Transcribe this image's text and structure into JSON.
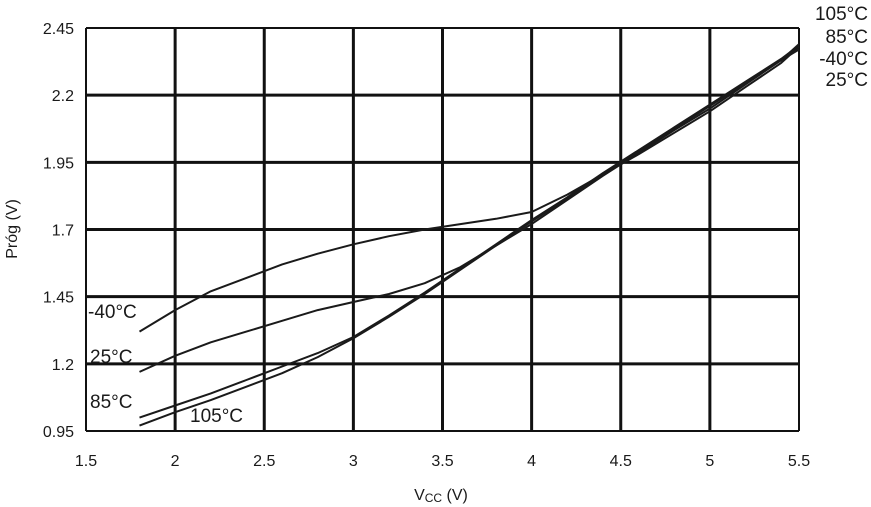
{
  "chart_data": {
    "type": "line",
    "xlabel": "V",
    "xlabel_sub": "CC",
    "xlabel_unit": " (V)",
    "ylabel": "Próg (V)",
    "xlim": [
      1.5,
      5.5
    ],
    "ylim": [
      0.95,
      2.45
    ],
    "xticks": [
      "1.5",
      "2",
      "2.5",
      "3",
      "3.5",
      "4",
      "4.5",
      "5",
      "5.5"
    ],
    "yticks": [
      "0.95",
      "1.2",
      "1.45",
      "1.7",
      "1.95",
      "2.2",
      "2.45"
    ],
    "grid": true,
    "series": [
      {
        "name": "-40°C",
        "x": [
          1.8,
          2.0,
          2.2,
          2.4,
          2.6,
          2.8,
          3.0,
          3.2,
          3.4,
          3.6,
          3.8,
          4.0,
          4.2,
          4.4,
          4.6,
          4.8,
          5.0,
          5.2,
          5.4,
          5.5
        ],
        "y": [
          1.32,
          1.4,
          1.47,
          1.52,
          1.57,
          1.61,
          1.645,
          1.675,
          1.7,
          1.72,
          1.74,
          1.765,
          1.83,
          1.905,
          1.98,
          2.06,
          2.14,
          2.23,
          2.32,
          2.38
        ]
      },
      {
        "name": "25°C",
        "x": [
          1.8,
          2.0,
          2.2,
          2.4,
          2.6,
          2.8,
          3.0,
          3.2,
          3.4,
          3.6,
          3.8,
          4.0,
          4.2,
          4.4,
          4.6,
          4.8,
          5.0,
          5.2,
          5.4,
          5.5
        ],
        "y": [
          1.17,
          1.23,
          1.28,
          1.32,
          1.36,
          1.4,
          1.43,
          1.46,
          1.5,
          1.56,
          1.64,
          1.72,
          1.81,
          1.9,
          1.985,
          2.07,
          2.15,
          2.24,
          2.33,
          2.37
        ]
      },
      {
        "name": "85°C",
        "x": [
          1.8,
          2.0,
          2.2,
          2.4,
          2.6,
          2.8,
          3.0,
          3.2,
          3.4,
          3.6,
          3.8,
          4.0,
          4.2,
          4.4,
          4.6,
          4.8,
          5.0,
          5.2,
          5.4,
          5.5
        ],
        "y": [
          1.0,
          1.045,
          1.09,
          1.14,
          1.19,
          1.24,
          1.3,
          1.38,
          1.465,
          1.555,
          1.645,
          1.735,
          1.82,
          1.91,
          1.995,
          2.08,
          2.165,
          2.25,
          2.335,
          2.385
        ]
      },
      {
        "name": "105°C",
        "x": [
          1.8,
          2.0,
          2.2,
          2.4,
          2.6,
          2.8,
          3.0,
          3.2,
          3.4,
          3.6,
          3.8,
          4.0,
          4.2,
          4.4,
          4.6,
          4.8,
          5.0,
          5.2,
          5.4,
          5.5
        ],
        "y": [
          0.97,
          1.02,
          1.065,
          1.115,
          1.165,
          1.225,
          1.295,
          1.375,
          1.46,
          1.55,
          1.64,
          1.73,
          1.815,
          1.905,
          1.99,
          2.075,
          2.16,
          2.245,
          2.33,
          2.39
        ]
      }
    ],
    "labels_right": [
      "105°C",
      "85°C",
      "-40°C",
      "25°C"
    ],
    "labels_left": [
      "-40°C",
      "25°C",
      "85°C",
      "105°C"
    ]
  }
}
